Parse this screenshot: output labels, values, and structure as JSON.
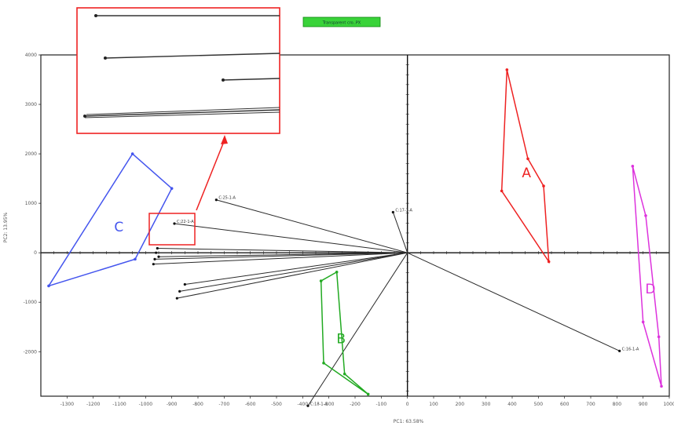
{
  "chart_data": {
    "type": "scatter",
    "title": "",
    "legend_badge": "Transparent cro..PX",
    "xlabel": "PC1: 63.58%",
    "ylabel": "PC2: 13.95%",
    "xlim": [
      -1400,
      1000
    ],
    "ylim": [
      -2900,
      4000
    ],
    "x_ticks": [
      -1300,
      -1200,
      -1100,
      -1000,
      -900,
      -800,
      -700,
      -600,
      -500,
      -400,
      -300,
      -200,
      -100,
      0,
      100,
      200,
      300,
      400,
      500,
      600,
      700,
      800,
      900,
      1000
    ],
    "y_ticks": [
      -2000,
      -1000,
      0,
      1000,
      2000,
      3000,
      4000
    ],
    "loading_vectors": [
      {
        "label": "C:25-1-A",
        "x": -730,
        "y": 1070
      },
      {
        "label": "C:22-1-A",
        "x": -890,
        "y": 590
      },
      {
        "label": "C:17-1-A",
        "x": -55,
        "y": 820
      },
      {
        "label": "C:16-1-A",
        "x": 810,
        "y": -1985
      },
      {
        "label": "C:18-1-A",
        "x": -380,
        "y": -3095
      },
      {
        "label": "",
        "x": -850,
        "y": -640
      },
      {
        "label": "",
        "x": -870,
        "y": -780
      },
      {
        "label": "",
        "x": -880,
        "y": -920
      },
      {
        "label": "",
        "x": -950,
        "y": -80
      },
      {
        "label": "",
        "x": -960,
        "y": 0
      },
      {
        "label": "",
        "x": -965,
        "y": -130
      },
      {
        "label": "",
        "x": -970,
        "y": -230
      },
      {
        "label": "",
        "x": -955,
        "y": 90
      }
    ],
    "groups": [
      {
        "name": "A",
        "color": "#ee2222",
        "points": [
          [
            380,
            3700
          ],
          [
            460,
            1900
          ],
          [
            520,
            1350
          ],
          [
            540,
            -180
          ],
          [
            360,
            1250
          ]
        ]
      },
      {
        "name": "B",
        "color": "#22aa22",
        "points": [
          [
            -270,
            -390
          ],
          [
            -330,
            -570
          ],
          [
            -320,
            -2230
          ],
          [
            -150,
            -2860
          ],
          [
            -240,
            -2450
          ]
        ]
      },
      {
        "name": "C",
        "color": "#4455ee",
        "points": [
          [
            -1050,
            2000
          ],
          [
            -900,
            1300
          ],
          [
            -1040,
            -130
          ],
          [
            -1370,
            -670
          ]
        ]
      },
      {
        "name": "D",
        "color": "#dd33dd",
        "points": [
          [
            860,
            1750
          ],
          [
            910,
            750
          ],
          [
            960,
            -1700
          ],
          [
            970,
            -2700
          ],
          [
            900,
            -1400
          ]
        ]
      }
    ],
    "inset": {
      "lines": 4
    }
  }
}
